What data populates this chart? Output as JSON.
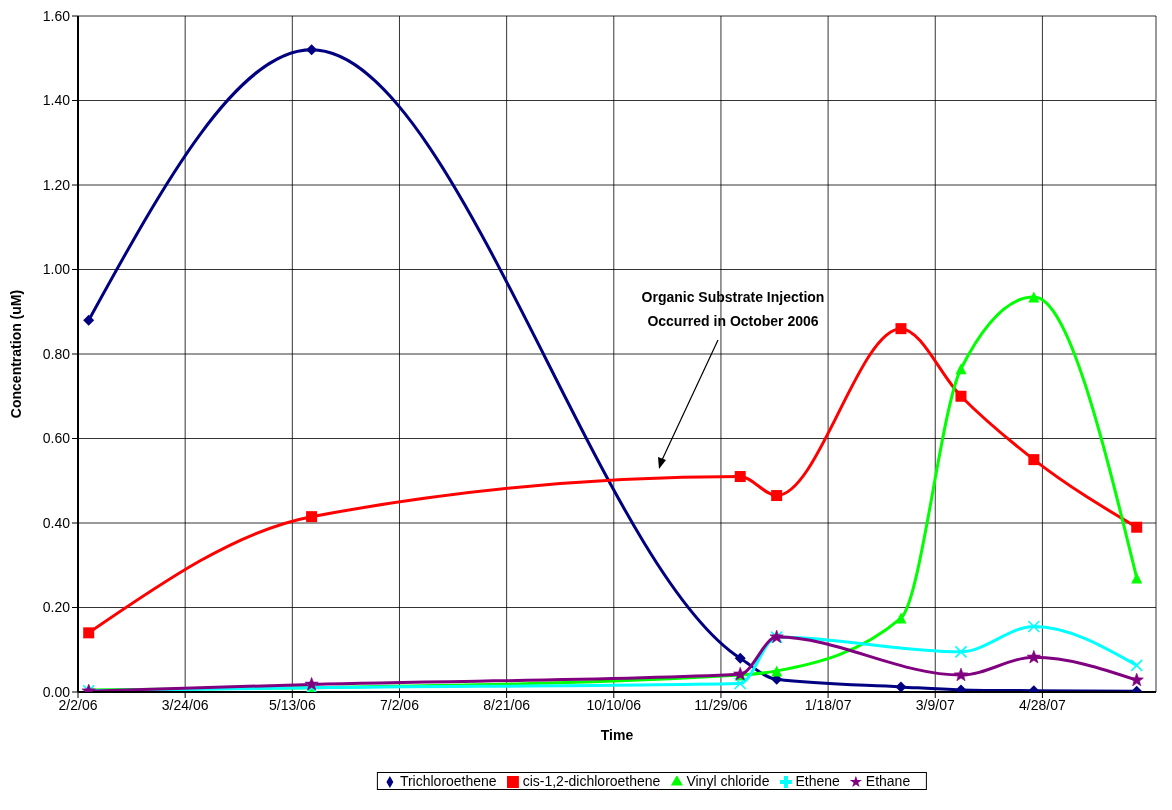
{
  "chart_data": {
    "type": "line",
    "xlabel": "Time",
    "ylabel": "Concentration (uM)",
    "x": [
      "2006-02-07",
      "2006-05-22",
      "2006-12-08",
      "2006-12-25",
      "2007-02-21",
      "2007-03-21",
      "2007-04-24",
      "2007-06-11"
    ],
    "series": [
      {
        "name": "Trichloroethene",
        "color": "#000080",
        "marker": "diamond",
        "values": [
          0.88,
          1.52,
          0.08,
          0.03,
          0.012,
          0.005,
          0.003,
          0.002
        ]
      },
      {
        "name": "cis-1,2-dichloroethene",
        "color": "#ff0000",
        "marker": "square",
        "values": [
          0.14,
          0.415,
          0.51,
          0.465,
          0.86,
          0.7,
          0.55,
          0.39
        ]
      },
      {
        "name": "Vinyl chloride",
        "color": "#00ff00",
        "marker": "triangle",
        "values": [
          0.005,
          0.01,
          0.04,
          0.05,
          0.175,
          0.765,
          0.935,
          0.27
        ]
      },
      {
        "name": "Ethene",
        "color": "#00ffff",
        "marker": "cross",
        "values": [
          0.003,
          0.01,
          0.02,
          0.13,
          null,
          0.095,
          0.155,
          0.063
        ]
      },
      {
        "name": "Ethane",
        "color": "#800080",
        "marker": "star",
        "values": [
          0.002,
          0.018,
          0.042,
          0.13,
          null,
          0.04,
          0.082,
          0.028
        ]
      }
    ],
    "xlim": [
      "2006-02-02",
      "2007-06-20"
    ],
    "xticks": [
      {
        "value": "2006-02-02",
        "label": "2/2/06"
      },
      {
        "value": "2006-03-24",
        "label": "3/24/06"
      },
      {
        "value": "2006-05-13",
        "label": "5/13/06"
      },
      {
        "value": "2006-07-02",
        "label": "7/2/06"
      },
      {
        "value": "2006-08-21",
        "label": "8/21/06"
      },
      {
        "value": "2006-10-10",
        "label": "10/10/06"
      },
      {
        "value": "2006-11-29",
        "label": "11/29/06"
      },
      {
        "value": "2007-01-18",
        "label": "1/18/07"
      },
      {
        "value": "2007-03-09",
        "label": "3/9/07"
      },
      {
        "value": "2007-04-28",
        "label": "4/28/07"
      }
    ],
    "ylim": [
      0,
      1.6
    ],
    "yticks": [
      {
        "value": 0,
        "label": "0.00"
      },
      {
        "value": 0.2,
        "label": "0.20"
      },
      {
        "value": 0.4,
        "label": "0.40"
      },
      {
        "value": 0.6,
        "label": "0.60"
      },
      {
        "value": 0.8,
        "label": "0.80"
      },
      {
        "value": 1.0,
        "label": "1.00"
      },
      {
        "value": 1.2,
        "label": "1.20"
      },
      {
        "value": 1.4,
        "label": "1.40"
      },
      {
        "value": 1.6,
        "label": "1.60"
      }
    ],
    "grid": true,
    "legend": "bottom",
    "annotations": [
      "Organic Substrate Injection\nOccurred in October 2006"
    ]
  }
}
